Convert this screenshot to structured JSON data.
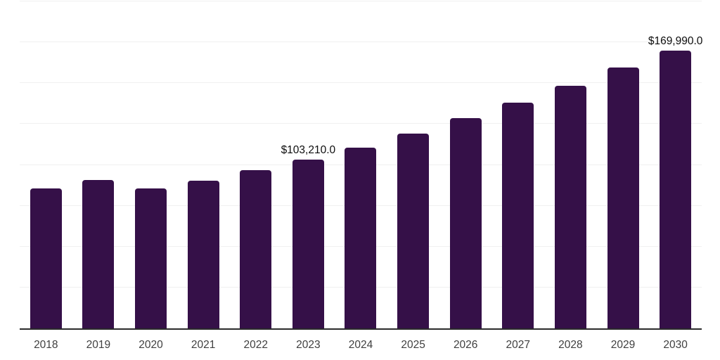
{
  "chart_data": {
    "type": "bar",
    "categories": [
      "2018",
      "2019",
      "2020",
      "2021",
      "2022",
      "2023",
      "2024",
      "2025",
      "2026",
      "2027",
      "2028",
      "2029",
      "2030"
    ],
    "values": [
      85700,
      90800,
      85400,
      90200,
      96800,
      103210,
      110600,
      119200,
      128800,
      138000,
      148400,
      159400,
      169990
    ],
    "data_labels": {
      "2023": "$103,210.0",
      "2030": "$169,990.0"
    },
    "title": "",
    "xlabel": "",
    "ylabel": "",
    "ylim": [
      0,
      200000
    ],
    "gridline_interval": 25000,
    "grid": true,
    "legend_position": "none",
    "y_axis_tick_labels_visible": false,
    "bar_color": "#351048",
    "gridline_color": "#f0f0f0",
    "axis_line_color": "#2b2b2b",
    "data_label_color": "#0d0d0d",
    "x_label_color": "#3f3f3f",
    "background": "#ffffff"
  }
}
